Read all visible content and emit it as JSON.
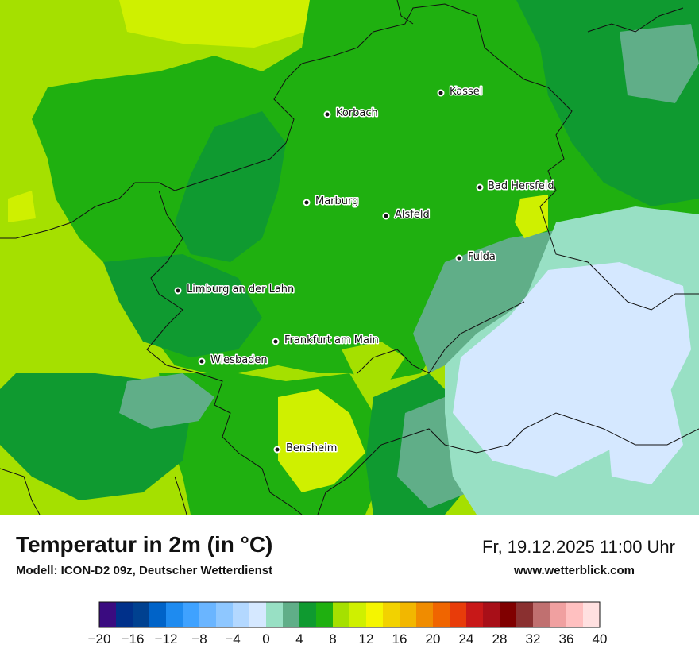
{
  "map": {
    "cities": [
      {
        "name": "Kassel"
      },
      {
        "name": "Korbach"
      },
      {
        "name": "Bad Hersfeld"
      },
      {
        "name": "Marburg"
      },
      {
        "name": "Alsfeld"
      },
      {
        "name": "Fulda"
      },
      {
        "name": "Limburg an der Lahn"
      },
      {
        "name": "Frankfurt am Main"
      },
      {
        "name": "Wiesbaden"
      },
      {
        "name": "Bensheim"
      }
    ]
  },
  "footer": {
    "title": "Temperatur in 2m (in °C)",
    "model": "Modell: ICON-D2 09z, Deutscher Wetterdienst",
    "datetime": "Fr, 19.12.2025 11:00 Uhr",
    "site": "www.wetterblick.com"
  },
  "legend": {
    "min": -20,
    "max": 40,
    "step": 2,
    "tick_labels": [
      "−20",
      "−16",
      "−12",
      "−8",
      "−4",
      "0",
      "4",
      "8",
      "12",
      "16",
      "20",
      "24",
      "28",
      "32",
      "36",
      "40"
    ],
    "colors": [
      "#3a0b80",
      "#00308a",
      "#004190",
      "#0063c8",
      "#1e8bf0",
      "#3fa2ff",
      "#6ab5ff",
      "#8ec7ff",
      "#b3d8ff",
      "#d5e8ff",
      "#98e0c4",
      "#60ae88",
      "#0f9a30",
      "#1fb010",
      "#a5e000",
      "#cff000",
      "#f5f500",
      "#f2d200",
      "#f2b700",
      "#f08c00",
      "#f06500",
      "#e83c0a",
      "#c81818",
      "#a80f18",
      "#800000",
      "#8a3030",
      "#c07070",
      "#f0a0a0",
      "#ffc0c0",
      "#ffe0e0"
    ]
  }
}
